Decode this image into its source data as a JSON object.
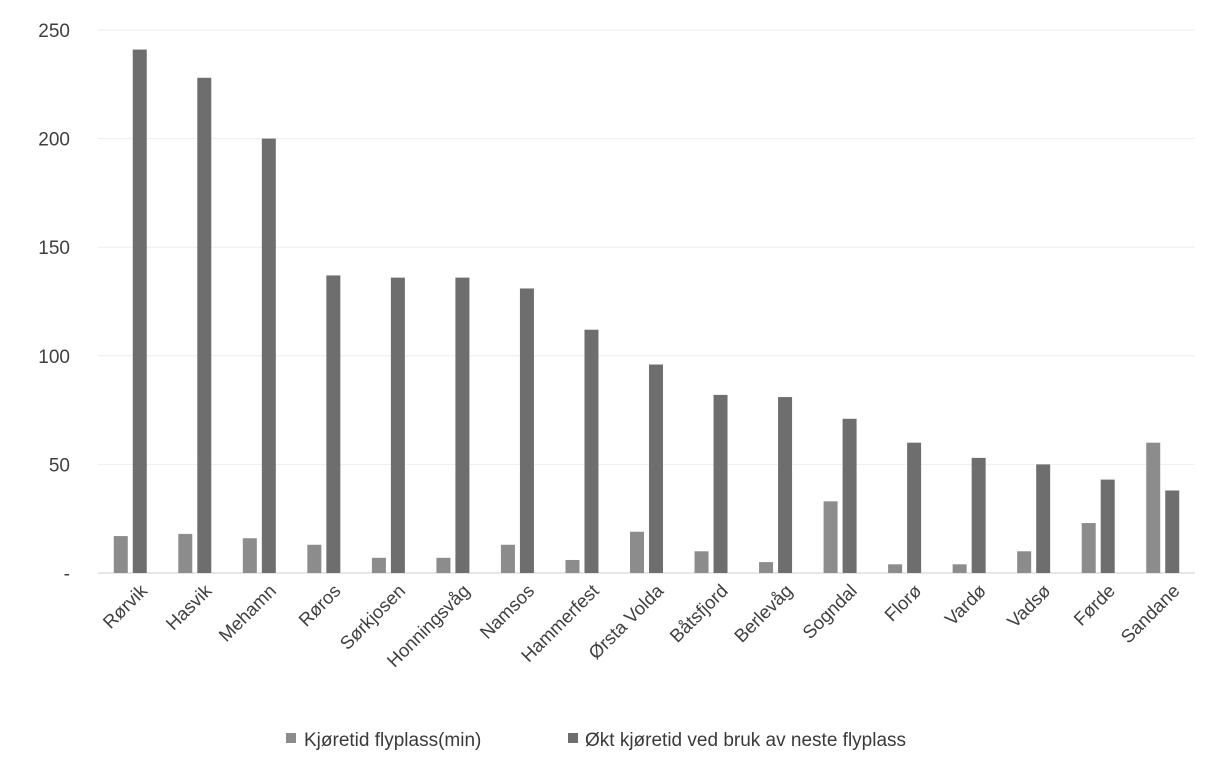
{
  "chart_data": {
    "type": "bar",
    "title": "",
    "xlabel": "",
    "ylabel": "",
    "ylim": [
      0,
      250
    ],
    "y_ticks": [
      {
        "value": 0,
        "label": "-"
      },
      {
        "value": 50,
        "label": "50"
      },
      {
        "value": 100,
        "label": "100"
      },
      {
        "value": 150,
        "label": "150"
      },
      {
        "value": 200,
        "label": "200"
      },
      {
        "value": 250,
        "label": "250"
      }
    ],
    "grid": true,
    "legend_position": "bottom",
    "categories": [
      "Rørvik",
      "Hasvik",
      "Mehamn",
      "Røros",
      "Sørkjosen",
      "Honningsvåg",
      "Namsos",
      "Hammerfest",
      "Ørsta Volda",
      "Båtsfjord",
      "Berlevåg",
      "Sogndal",
      "Florø",
      "Vardø",
      "Vadsø",
      "Førde",
      "Sandane"
    ],
    "series": [
      {
        "name": "Kjøretid flyplass(min)",
        "color": "#8c8c8c",
        "values": [
          17,
          18,
          16,
          13,
          7,
          7,
          13,
          6,
          19,
          10,
          5,
          33,
          4,
          4,
          10,
          23,
          60
        ]
      },
      {
        "name": "Økt kjøretid ved bruk av neste flyplass",
        "color": "#6e6e6e",
        "values": [
          241,
          228,
          200,
          137,
          136,
          136,
          131,
          112,
          96,
          82,
          81,
          71,
          60,
          53,
          50,
          43,
          38
        ]
      }
    ]
  }
}
